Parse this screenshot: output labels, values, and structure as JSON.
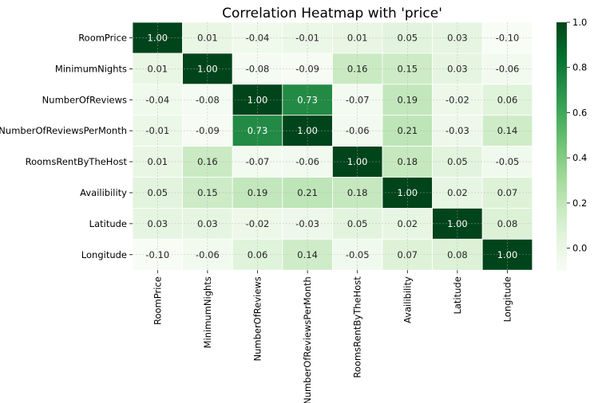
{
  "chart_data": {
    "type": "heatmap",
    "title": "Correlation Heatmap with 'price'",
    "rows": [
      "RoomPrice",
      "MinimumNights",
      "NumberOfReviews",
      "NumberOfReviewsPerMonth",
      "RoomsRentByTheHost",
      "Availibility",
      "Latitude",
      "Longitude"
    ],
    "columns": [
      "RoomPrice",
      "MinimumNights",
      "NumberOfReviews",
      "NumberOfReviewsPerMonth",
      "RoomsRentByTheHost",
      "Availibility",
      "Latitude",
      "Longitude"
    ],
    "values": [
      [
        1.0,
        0.01,
        -0.04,
        -0.01,
        0.01,
        0.05,
        0.03,
        -0.1
      ],
      [
        0.01,
        1.0,
        -0.08,
        -0.09,
        0.16,
        0.15,
        0.03,
        -0.06
      ],
      [
        -0.04,
        -0.08,
        1.0,
        0.73,
        -0.07,
        0.19,
        -0.02,
        0.06
      ],
      [
        -0.01,
        -0.09,
        0.73,
        1.0,
        -0.06,
        0.21,
        -0.03,
        0.14
      ],
      [
        0.01,
        0.16,
        -0.07,
        -0.06,
        1.0,
        0.18,
        0.05,
        -0.05
      ],
      [
        0.05,
        0.15,
        0.19,
        0.21,
        0.18,
        1.0,
        0.02,
        0.07
      ],
      [
        0.03,
        0.03,
        -0.02,
        -0.03,
        0.05,
        0.02,
        1.0,
        0.08
      ],
      [
        -0.1,
        -0.06,
        0.06,
        0.14,
        -0.05,
        0.07,
        0.08,
        1.0
      ]
    ],
    "value_labels": [
      [
        "1.00",
        "0.01",
        "-0.04",
        "-0.01",
        "0.01",
        "0.05",
        "0.03",
        "-0.10"
      ],
      [
        "0.01",
        "1.00",
        "-0.08",
        "-0.09",
        "0.16",
        "0.15",
        "0.03",
        "-0.06"
      ],
      [
        "-0.04",
        "-0.08",
        "1.00",
        "0.73",
        "-0.07",
        "0.19",
        "-0.02",
        "0.06"
      ],
      [
        "-0.01",
        "-0.09",
        "0.73",
        "1.00",
        "-0.06",
        "0.21",
        "-0.03",
        "0.14"
      ],
      [
        "0.01",
        "0.16",
        "-0.07",
        "-0.06",
        "1.00",
        "0.18",
        "0.05",
        "-0.05"
      ],
      [
        "0.05",
        "0.15",
        "0.19",
        "0.21",
        "0.18",
        "1.00",
        "0.02",
        "0.07"
      ],
      [
        "0.03",
        "0.03",
        "-0.02",
        "-0.03",
        "0.05",
        "0.02",
        "1.00",
        "0.08"
      ],
      [
        "-0.10",
        "-0.06",
        "0.06",
        "0.14",
        "-0.05",
        "0.07",
        "0.08",
        "1.00"
      ]
    ],
    "colorscale": "Greens",
    "color_low": "#f7fcf5",
    "color_high": "#00441b",
    "vmin": -0.1,
    "vmax": 1.0,
    "colorbar_ticks": [
      "1.0",
      "0.8",
      "0.6",
      "0.4",
      "0.2",
      "0.0"
    ],
    "colorbar_tick_values": [
      1.0,
      0.8,
      0.6,
      0.4,
      0.2,
      0.0
    ],
    "grid": true,
    "cell_border_color": "#ffffff"
  }
}
